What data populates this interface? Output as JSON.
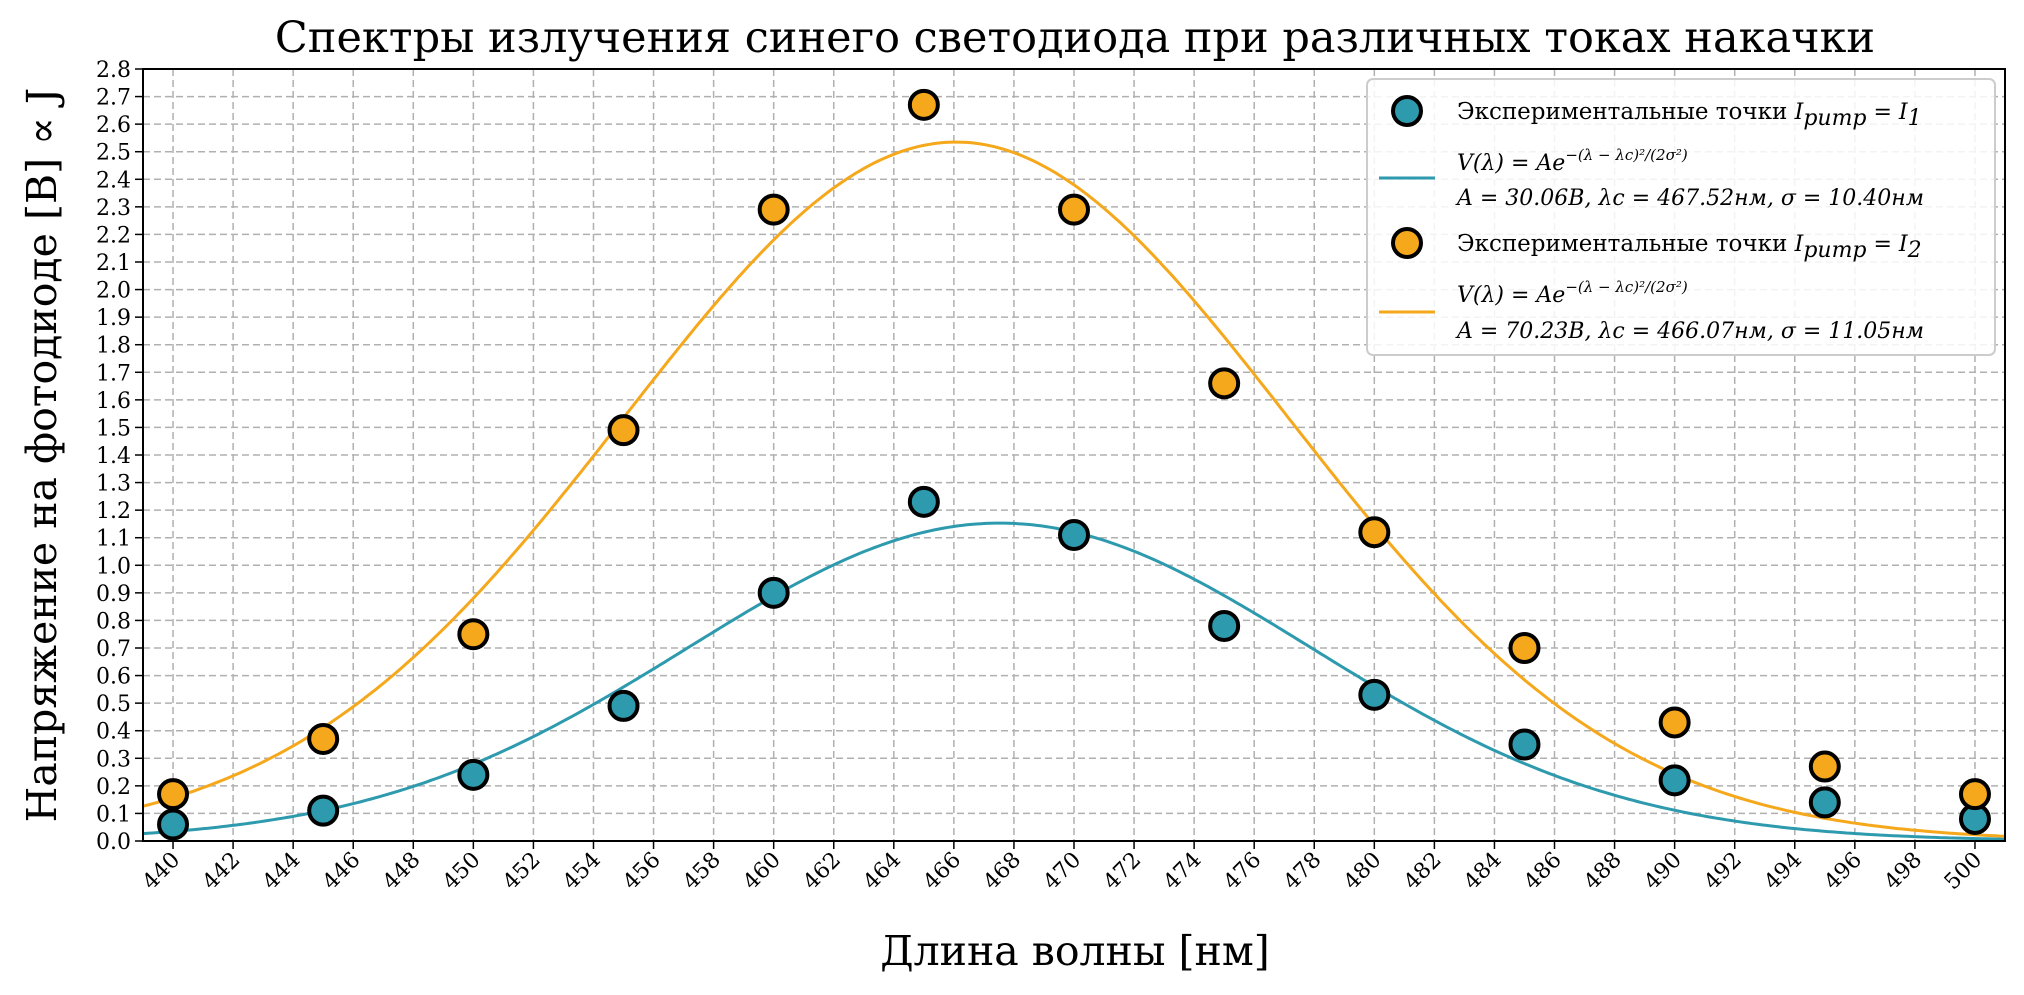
{
  "chart_data": {
    "type": "scatter",
    "title": "Спектры излучения синего светодиода при различных токах накачки",
    "xlabel": "Длина волны [нм]",
    "ylabel": "Напряжение на фотодиоде [В] ∝ J",
    "xlim": [
      439,
      501
    ],
    "ylim": [
      0,
      2.8
    ],
    "x_ticks": [
      440,
      442,
      444,
      446,
      448,
      450,
      452,
      454,
      456,
      458,
      460,
      462,
      464,
      466,
      468,
      470,
      472,
      474,
      476,
      478,
      480,
      482,
      484,
      486,
      488,
      490,
      492,
      494,
      496,
      498,
      500
    ],
    "y_ticks": [
      0.0,
      0.1,
      0.2,
      0.3,
      0.4,
      0.5,
      0.6,
      0.7,
      0.8,
      0.9,
      1.0,
      1.1,
      1.2,
      1.3,
      1.4,
      1.5,
      1.6,
      1.7,
      1.8,
      1.9,
      2.0,
      2.1,
      2.2,
      2.3,
      2.4,
      2.5,
      2.6,
      2.7,
      2.8
    ],
    "grid": true,
    "legend_position": "top-right",
    "series": [
      {
        "name": "Экспериментальные точки I_pump = I1",
        "kind": "scatter",
        "color": "#2e9aae",
        "x": [
          440,
          445,
          450,
          455,
          460,
          465,
          470,
          475,
          480,
          485,
          490,
          495,
          500
        ],
        "y": [
          0.06,
          0.11,
          0.24,
          0.49,
          0.9,
          1.23,
          1.11,
          0.78,
          0.53,
          0.35,
          0.22,
          0.14,
          0.08
        ]
      },
      {
        "name": "V(λ) = Ae^(−(λ−λc)²/(2σ²)), A = 30.06В, λc = 467.52нм, σ = 10.40нм",
        "kind": "line",
        "color": "#2e9aae",
        "gaussian": {
          "peak": 1.153,
          "center": 467.52,
          "sigma": 10.4
        }
      },
      {
        "name": "Экспериментальные точки I_pump = I2",
        "kind": "scatter",
        "color": "#f5a81c",
        "x": [
          440,
          445,
          450,
          455,
          460,
          465,
          470,
          475,
          480,
          485,
          490,
          495,
          500
        ],
        "y": [
          0.17,
          0.37,
          0.75,
          1.49,
          2.29,
          2.67,
          2.29,
          1.66,
          1.12,
          0.7,
          0.43,
          0.27,
          0.17
        ]
      },
      {
        "name": "V(λ) = Ae^(−(λ−λc)²/(2σ²)), A = 70.23В, λc = 466.07нм, σ = 11.05нм",
        "kind": "line",
        "color": "#f5a81c",
        "gaussian": {
          "peak": 2.535,
          "center": 466.07,
          "sigma": 11.05
        }
      }
    ]
  },
  "legend": {
    "entries": [
      {
        "text": "Экспериментальные точки ",
        "math": "I",
        "sub": "pump",
        "tail": " = I",
        "tailsub": "1"
      },
      {
        "formula_line1": "V(λ) = Ae",
        "formula_sup": "−(λ − λc)²/(2σ²)",
        "params": "A = 30.06В, λc = 467.52нм, σ = 10.40нм"
      },
      {
        "text": "Экспериментальные точки ",
        "math": "I",
        "sub": "pump",
        "tail": " = I",
        "tailsub": "2"
      },
      {
        "formula_line1": "V(λ) = Ae",
        "formula_sup": "−(λ − λc)²/(2σ²)",
        "params": "A = 70.23В, λc = 466.07нм, σ = 11.05нм"
      }
    ]
  }
}
